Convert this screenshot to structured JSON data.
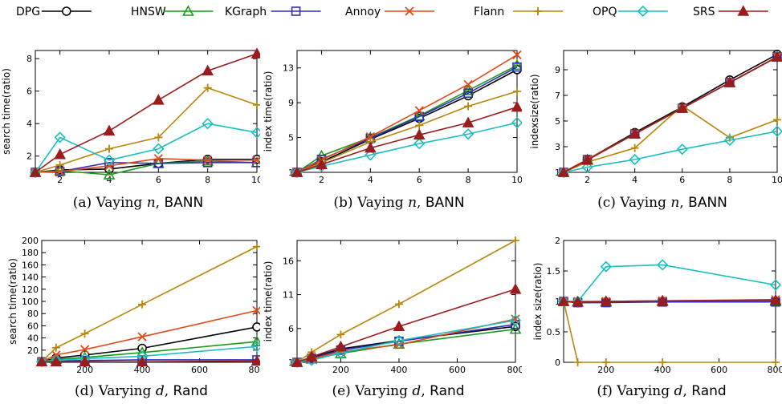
{
  "legend": [
    {
      "name": "DPG",
      "color": "#000000",
      "marker": "circle"
    },
    {
      "name": "HNSW",
      "color": "#1a9a1a",
      "marker": "triangle"
    },
    {
      "name": "KGraph",
      "color": "#2e2eb8",
      "marker": "square"
    },
    {
      "name": "Annoy",
      "color": "#e04a1a",
      "marker": "x"
    },
    {
      "name": "Flann",
      "color": "#b8860b",
      "marker": "plus"
    },
    {
      "name": "OPQ",
      "color": "#1bbfbf",
      "marker": "diamond"
    },
    {
      "name": "SRS",
      "color": "#9b1c1c",
      "marker": "triangle-filled"
    }
  ],
  "chart_data": [
    {
      "type": "line",
      "caption": {
        "prefix": "(a) Vaying ",
        "var": "n",
        "sep": ", ",
        "dataset": "BANN"
      },
      "ylabel": "search time(ratio)",
      "xlim": [
        1,
        10
      ],
      "ylim": [
        1,
        8.5
      ],
      "xticks": [
        2,
        4,
        6,
        8,
        10
      ],
      "yticks": [
        2,
        4,
        6,
        8
      ],
      "x": [
        1,
        2,
        4,
        6,
        8,
        10
      ],
      "series": [
        {
          "name": "DPG",
          "values": [
            1,
            1.15,
            1.2,
            1.55,
            1.8,
            1.8
          ]
        },
        {
          "name": "HNSW",
          "values": [
            1,
            1.1,
            0.85,
            1.55,
            1.7,
            1.6
          ]
        },
        {
          "name": "KGraph",
          "values": [
            1,
            1.05,
            1.6,
            1.55,
            1.6,
            1.6
          ]
        },
        {
          "name": "Annoy",
          "values": [
            1,
            1.05,
            1.4,
            1.85,
            1.75,
            1.75
          ]
        },
        {
          "name": "Flann",
          "values": [
            1,
            1.45,
            2.45,
            3.15,
            6.2,
            5.15
          ]
        },
        {
          "name": "OPQ",
          "values": [
            1,
            3.15,
            1.75,
            2.45,
            4.0,
            3.45
          ]
        },
        {
          "name": "SRS",
          "values": [
            1,
            2.1,
            3.55,
            5.45,
            7.25,
            8.3
          ]
        }
      ]
    },
    {
      "type": "line",
      "caption": {
        "prefix": "(b) Vaying ",
        "var": "n",
        "sep": ", ",
        "dataset": "BANN"
      },
      "ylabel": "index time(ratio)",
      "xlim": [
        1,
        10
      ],
      "ylim": [
        1,
        15
      ],
      "xticks": [
        2,
        4,
        6,
        8,
        10
      ],
      "yticks": [
        1,
        5,
        9,
        13
      ],
      "x": [
        1,
        2,
        4,
        6,
        8,
        10
      ],
      "series": [
        {
          "name": "DPG",
          "values": [
            1,
            2.2,
            4.8,
            7.2,
            9.8,
            12.8
          ]
        },
        {
          "name": "HNSW",
          "values": [
            1,
            2.9,
            5.0,
            7.5,
            10.4,
            13.3
          ]
        },
        {
          "name": "KGraph",
          "values": [
            1,
            2.5,
            4.9,
            7.4,
            10.1,
            13.1
          ]
        },
        {
          "name": "Annoy",
          "values": [
            1,
            2.4,
            5.1,
            8.1,
            11.1,
            14.5
          ]
        },
        {
          "name": "Flann",
          "values": [
            1,
            2.1,
            4.5,
            6.4,
            8.6,
            10.3
          ]
        },
        {
          "name": "OPQ",
          "values": [
            1,
            1.7,
            3.0,
            4.3,
            5.4,
            6.7
          ]
        },
        {
          "name": "SRS",
          "values": [
            1,
            1.9,
            3.8,
            5.3,
            6.7,
            8.5
          ]
        }
      ]
    },
    {
      "type": "line",
      "caption": {
        "prefix": "(c) Vaying ",
        "var": "n",
        "sep": ", ",
        "dataset": "BANN"
      },
      "ylabel": "indexsize(ratio)",
      "xlim": [
        1,
        10
      ],
      "ylim": [
        1,
        10.5
      ],
      "xticks": [
        2,
        4,
        6,
        8,
        10
      ],
      "yticks": [
        1,
        3,
        5,
        7,
        9
      ],
      "x": [
        1,
        2,
        4,
        6,
        8,
        10
      ],
      "series": [
        {
          "name": "DPG",
          "values": [
            1,
            2.0,
            4.1,
            6.1,
            8.2,
            10.2
          ]
        },
        {
          "name": "HNSW",
          "values": [
            1,
            2.0,
            4.0,
            6.0,
            8.0,
            10.0
          ]
        },
        {
          "name": "KGraph",
          "values": [
            1,
            2.0,
            4.0,
            6.0,
            8.0,
            10.0
          ]
        },
        {
          "name": "Annoy",
          "values": [
            1,
            2.0,
            4.0,
            6.0,
            8.0,
            10.0
          ]
        },
        {
          "name": "Flann",
          "values": [
            1,
            1.8,
            2.9,
            6.2,
            3.7,
            5.1
          ]
        },
        {
          "name": "OPQ",
          "values": [
            1,
            1.4,
            2.0,
            2.8,
            3.5,
            4.2
          ]
        },
        {
          "name": "SRS",
          "values": [
            1,
            1.95,
            4.0,
            6.0,
            8.0,
            10.0
          ]
        }
      ]
    },
    {
      "type": "line",
      "caption": {
        "prefix": "(d) Varying ",
        "var": "d",
        "sep": ", ",
        "dataset": "Rand"
      },
      "ylabel": "search time(ratio)",
      "xlim": [
        50,
        800
      ],
      "ylim": [
        0,
        200
      ],
      "xticks": [
        200,
        400,
        600,
        800
      ],
      "yticks": [
        20,
        40,
        60,
        80,
        100,
        120,
        140,
        160,
        180,
        200
      ],
      "x": [
        50,
        100,
        200,
        400,
        800
      ],
      "series": [
        {
          "name": "DPG",
          "values": [
            1,
            7,
            12,
            23,
            58
          ]
        },
        {
          "name": "HNSW",
          "values": [
            1,
            5,
            8,
            16,
            34
          ]
        },
        {
          "name": "KGraph",
          "values": [
            1,
            2,
            3,
            4,
            4
          ]
        },
        {
          "name": "Annoy",
          "values": [
            1,
            12,
            21,
            42,
            85
          ]
        },
        {
          "name": "Flann",
          "values": [
            1,
            24,
            47,
            95,
            190
          ]
        },
        {
          "name": "OPQ",
          "values": [
            1,
            3,
            6,
            10,
            26
          ]
        },
        {
          "name": "SRS",
          "values": [
            1,
            1,
            1,
            1,
            2
          ]
        }
      ]
    },
    {
      "type": "line",
      "caption": {
        "prefix": "(e) Varying ",
        "var": "d",
        "sep": ", ",
        "dataset": "Rand"
      },
      "ylabel": "index time(ratio)",
      "xlim": [
        50,
        800
      ],
      "ylim": [
        1,
        19
      ],
      "xticks": [
        200,
        400,
        600,
        800
      ],
      "yticks": [
        1,
        6,
        11,
        16
      ],
      "x": [
        50,
        100,
        200,
        400,
        800
      ],
      "series": [
        {
          "name": "DPG",
          "values": [
            1,
            1.7,
            3.0,
            4.2,
            6.3
          ]
        },
        {
          "name": "HNSW",
          "values": [
            1,
            1.5,
            2.3,
            3.7,
            5.9
          ]
        },
        {
          "name": "KGraph",
          "values": [
            1,
            1.6,
            2.8,
            4.1,
            6.6
          ]
        },
        {
          "name": "Annoy",
          "values": [
            1,
            1.5,
            2.6,
            3.6,
            7.4
          ]
        },
        {
          "name": "Flann",
          "values": [
            1,
            2.5,
            5.1,
            9.6,
            19
          ]
        },
        {
          "name": "OPQ",
          "values": [
            1,
            1.3,
            2.4,
            4.2,
            7.2
          ]
        },
        {
          "name": "SRS",
          "values": [
            1,
            1.8,
            3.3,
            6.3,
            11.8
          ]
        }
      ]
    },
    {
      "type": "line",
      "caption": {
        "prefix": "(f) Varying ",
        "var": "d",
        "sep": ", ",
        "dataset": "Rand"
      },
      "ylabel": "index size(ratio)",
      "xlim": [
        50,
        800
      ],
      "ylim": [
        0,
        2
      ],
      "xticks": [
        200,
        400,
        600,
        800
      ],
      "yticks": [
        0,
        0.5,
        1,
        1.5,
        2
      ],
      "x": [
        50,
        100,
        200,
        400,
        800
      ],
      "series": [
        {
          "name": "DPG",
          "values": [
            1,
            0.98,
            0.99,
            1.0,
            1.0
          ]
        },
        {
          "name": "HNSW",
          "values": [
            1,
            0.99,
            0.99,
            1.0,
            1.0
          ]
        },
        {
          "name": "KGraph",
          "values": [
            1,
            0.98,
            0.98,
            0.99,
            0.99
          ]
        },
        {
          "name": "Annoy",
          "values": [
            1,
            1.0,
            1.0,
            1.01,
            1.03
          ]
        },
        {
          "name": "Flann",
          "values": [
            1,
            0,
            0,
            0,
            0
          ]
        },
        {
          "name": "OPQ",
          "values": [
            1,
            1.0,
            1.57,
            1.6,
            1.27
          ]
        },
        {
          "name": "SRS",
          "values": [
            1,
            0.99,
            1.0,
            1.01,
            1.02
          ]
        }
      ]
    }
  ]
}
